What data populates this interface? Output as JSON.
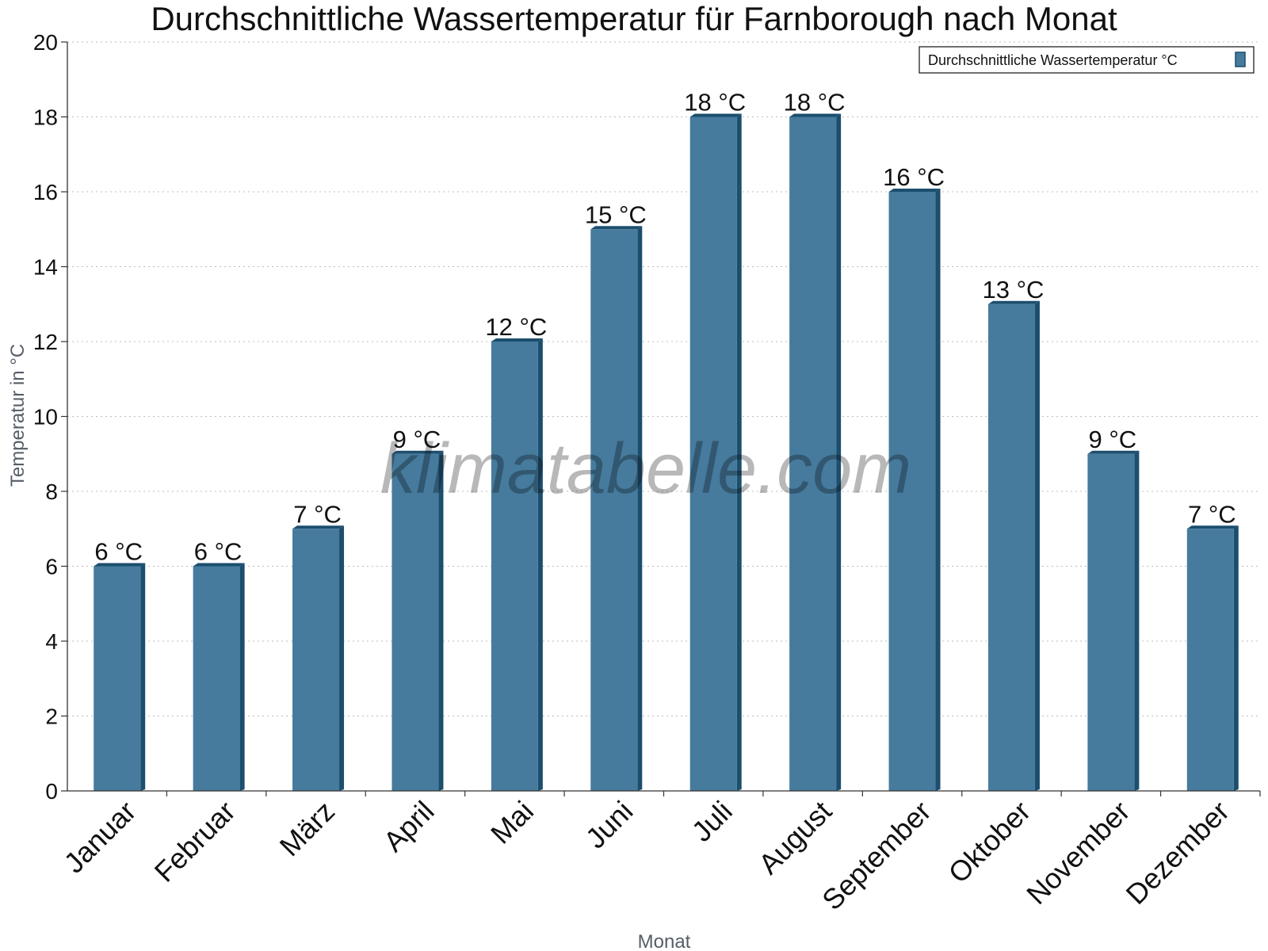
{
  "chart_data": {
    "type": "bar",
    "title": "Durchschnittliche Wassertemperatur für Farnborough nach Monat",
    "xlabel": "Monat",
    "ylabel": "Temperatur in °C",
    "ylim": [
      0,
      20
    ],
    "yticks": [
      0,
      2,
      4,
      6,
      8,
      10,
      12,
      14,
      16,
      18,
      20
    ],
    "grid": true,
    "legend_position": "top-right",
    "categories": [
      "Januar",
      "Februar",
      "März",
      "April",
      "Mai",
      "Juni",
      "Juli",
      "August",
      "September",
      "Oktober",
      "November",
      "Dezember"
    ],
    "series": [
      {
        "name": "Durchschnittliche Wassertemperatur °C",
        "values": [
          6,
          6,
          7,
          9,
          12,
          15,
          18,
          18,
          16,
          13,
          9,
          7
        ],
        "value_labels": [
          "6 °C",
          "6 °C",
          "7 °C",
          "9 °C",
          "12 °C",
          "15 °C",
          "18 °C",
          "18 °C",
          "16 °C",
          "13 °C",
          "9 °C",
          "7 °C"
        ],
        "color": "#467b9d",
        "edge_color": "#1c4e6e"
      }
    ]
  },
  "watermark": "klimatabelle.com"
}
